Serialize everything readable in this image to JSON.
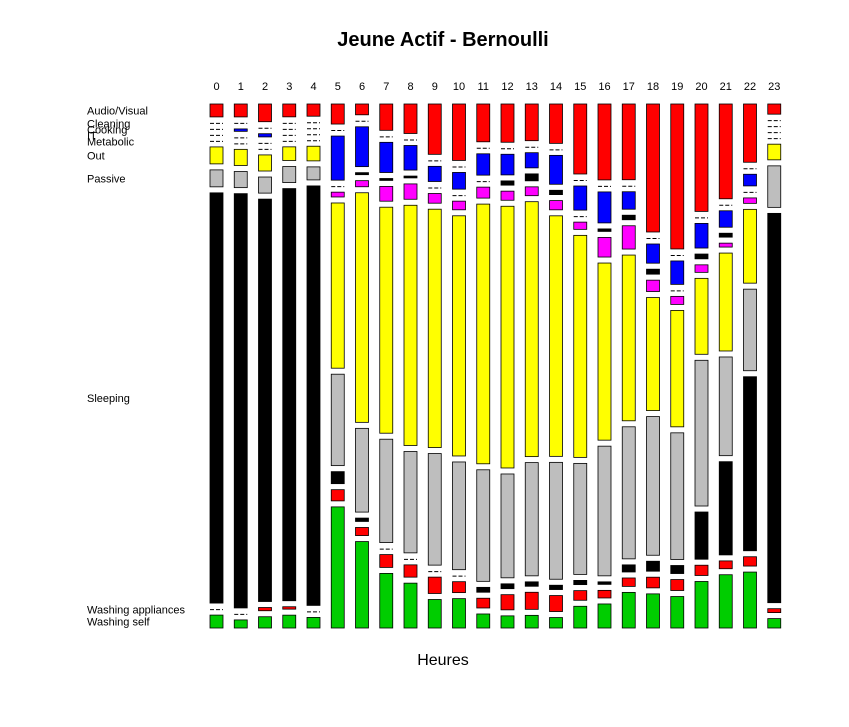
{
  "chart_data": {
    "type": "mosaic",
    "title": "Jeune Actif - Bernoulli",
    "xlabel": "Heures",
    "hours": [
      "0",
      "1",
      "2",
      "3",
      "4",
      "5",
      "6",
      "7",
      "8",
      "9",
      "10",
      "11",
      "12",
      "13",
      "14",
      "15",
      "16",
      "17",
      "18",
      "19",
      "20",
      "21",
      "22",
      "23"
    ],
    "categories": [
      "Audio/Visual",
      "Cleaning",
      "Cooking",
      "IT",
      "Metabolic",
      "Out",
      "Passive",
      "Sleeping",
      "Washing appliances",
      "Washing self"
    ],
    "colors": [
      "#ff0000",
      "#000000",
      "#0000ff",
      "#000000",
      "#ff00ff",
      "#ffff00",
      "#bebebe",
      "#000000",
      "#ff0000",
      "#00cd00"
    ],
    "shares": [
      [
        1.6,
        0,
        0,
        0,
        0,
        2.1,
        2.1,
        50.8,
        0,
        1.6
      ],
      [
        1.6,
        0,
        0.3,
        0,
        0,
        2.0,
        2.0,
        51.3,
        0,
        1.0
      ],
      [
        2.2,
        0,
        0.4,
        0,
        0,
        2.0,
        2.0,
        50.0,
        0.4,
        1.4
      ],
      [
        1.6,
        0,
        0,
        0,
        0,
        1.7,
        2.0,
        51.3,
        0.3,
        1.6
      ],
      [
        1.5,
        0,
        0,
        0,
        0,
        1.8,
        1.6,
        51.5,
        0,
        1.3
      ],
      [
        2.5,
        0,
        5.5,
        0,
        0.6,
        20.6,
        11.4,
        1.5,
        1.4,
        15.1
      ],
      [
        1.6,
        0,
        5.9,
        0.3,
        0.9,
        34.0,
        12.4,
        0.5,
        1.2,
        12.8
      ],
      [
        4.1,
        0,
        4.7,
        0.3,
        2.3,
        35.2,
        16.1,
        0,
        2.0,
        8.5
      ],
      [
        4.8,
        0,
        4.0,
        0.3,
        2.5,
        39.1,
        16.5,
        0,
        2.0,
        7.3
      ],
      [
        8.3,
        0,
        2.5,
        0,
        1.6,
        39.3,
        18.4,
        0,
        2.7,
        4.7
      ],
      [
        9.8,
        0,
        2.9,
        0,
        1.5,
        41.7,
        18.7,
        0,
        1.9,
        5.1
      ],
      [
        6.2,
        0,
        3.5,
        0,
        1.8,
        42.6,
        18.3,
        0.8,
        1.6,
        2.3
      ],
      [
        6.3,
        0,
        3.4,
        0.7,
        1.5,
        43.1,
        17.1,
        0.8,
        2.5,
        2.0
      ],
      [
        5.8,
        0,
        2.4,
        1.1,
        1.4,
        40.3,
        17.9,
        0.7,
        2.7,
        2.0
      ],
      [
        6.4,
        0,
        4.7,
        0.7,
        1.5,
        39.1,
        19.0,
        0.7,
        2.6,
        1.7
      ],
      [
        11.6,
        0,
        4.0,
        0,
        1.2,
        36.8,
        18.4,
        0.7,
        1.6,
        3.6
      ],
      [
        12.0,
        0,
        4.9,
        0.4,
        3.1,
        28.0,
        20.5,
        0.4,
        1.2,
        3.8
      ],
      [
        11.7,
        0,
        2.7,
        0.7,
        3.6,
        25.6,
        20.4,
        1.1,
        1.3,
        5.5
      ],
      [
        18.0,
        0,
        2.7,
        0.7,
        1.6,
        15.9,
        19.5,
        1.4,
        1.5,
        4.8
      ],
      [
        19.8,
        0,
        3.2,
        0,
        1.1,
        15.9,
        17.3,
        1.1,
        1.5,
        4.3
      ],
      [
        15.7,
        0,
        3.6,
        0.7,
        1.1,
        11.1,
        21.3,
        6.9,
        1.5,
        6.8
      ],
      [
        12.1,
        0,
        2.1,
        0.5,
        0.5,
        12.5,
        12.6,
        11.9,
        1.0,
        6.8
      ],
      [
        7.5,
        0,
        1.5,
        0,
        0.7,
        9.5,
        10.5,
        22.4,
        1.2,
        7.2
      ],
      [
        1.3,
        0,
        0,
        0,
        0,
        2.0,
        5.3,
        49.7,
        0.5,
        1.2
      ]
    ]
  }
}
